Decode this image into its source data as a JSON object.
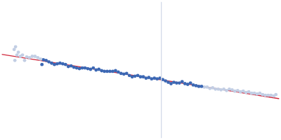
{
  "chart_data": {
    "type": "scatter",
    "xlim": [
      0,
      400
    ],
    "ylim": [
      0,
      200
    ],
    "grid": false,
    "tick_labels": false,
    "series": [
      {
        "type": "line",
        "color": "#d3dae9",
        "marker": "none",
        "line_style": "solid",
        "x": [
          230,
          230
        ],
        "values": [
          0,
          200
        ]
      },
      {
        "type": "scatter",
        "color": "#c2cee4",
        "marker": "circle",
        "x": [
          18,
          20,
          22,
          19,
          24,
          27,
          30,
          33,
          36,
          40,
          44,
          48,
          52,
          56
        ],
        "values": [
          130,
          134,
          122,
          114,
          126,
          120,
          122,
          114,
          119,
          118,
          120,
          120,
          118,
          116
        ]
      },
      {
        "type": "scatter",
        "color": "#3c68b4",
        "marker": "circle",
        "x": [
          58,
          60,
          64,
          68,
          72,
          76,
          80,
          84,
          88,
          92,
          96,
          100,
          104,
          108,
          112,
          116,
          120,
          124,
          128,
          132,
          136,
          140,
          144,
          148,
          152,
          156,
          160,
          164,
          168,
          172,
          176,
          180,
          184,
          188,
          192,
          196,
          200,
          204,
          208,
          212,
          216,
          220,
          224,
          228,
          232,
          236,
          240,
          244,
          248,
          252,
          256,
          260,
          264,
          268,
          272,
          276,
          280,
          284,
          288
        ],
        "values": [
          108,
          115,
          114,
          112,
          110,
          108,
          109,
          110,
          109,
          108,
          105,
          106,
          104,
          103,
          102,
          103,
          103,
          102,
          101,
          103,
          100,
          101,
          99,
          98,
          98,
          98,
          98,
          99,
          97,
          95,
          94,
          95,
          92,
          90,
          91,
          92,
          90,
          90,
          88,
          89,
          87,
          88,
          87,
          88,
          86,
          84,
          82,
          80,
          82,
          81,
          81,
          83,
          80,
          79,
          81,
          78,
          77,
          76,
          76
        ]
      },
      {
        "type": "scatter",
        "color": "#c2cee4",
        "marker": "circle",
        "x": [
          292,
          296,
          300,
          304,
          308,
          312,
          316,
          320,
          324,
          328,
          332,
          336,
          340,
          344,
          348,
          352,
          356,
          360,
          364,
          368,
          372,
          376,
          380,
          384,
          388,
          392,
          395
        ],
        "values": [
          75,
          75,
          73,
          74,
          72,
          72,
          71,
          72,
          70,
          72,
          71,
          69,
          70,
          68,
          69,
          67,
          68,
          66,
          66,
          65,
          66,
          64,
          63,
          63,
          63,
          62,
          64
        ]
      },
      {
        "type": "line",
        "color": "#d0283c",
        "marker": "none",
        "line_style": "solid",
        "x": [
          0,
          400
        ],
        "values": [
          123,
          58
        ]
      }
    ]
  }
}
